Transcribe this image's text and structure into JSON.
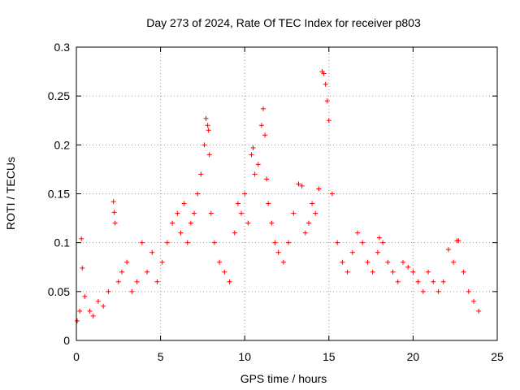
{
  "chart_data": {
    "type": "scatter",
    "title": "Day 273 of 2024, Rate Of TEC Index for receiver p803",
    "xlabel": "GPS time / hours",
    "ylabel": "ROTI / TECUs",
    "xlim": [
      0,
      25
    ],
    "ylim": [
      0,
      0.3
    ],
    "xticks": [
      0,
      5,
      10,
      15,
      20,
      25
    ],
    "yticks": [
      0,
      0.05,
      0.1,
      0.15,
      0.2,
      0.25,
      0.3
    ],
    "xtick_labels": [
      "0",
      "5",
      "10",
      "15",
      "20",
      "25"
    ],
    "ytick_labels": [
      "0",
      "0.05",
      "0.1",
      "0.15",
      "0.2",
      "0.25",
      "0.3"
    ],
    "grid": true,
    "marker": "plus",
    "color": "#ff0000",
    "series": [
      {
        "x": [
          0.05,
          0.2,
          0.3,
          0.35,
          0.5,
          0.8,
          1.0,
          1.3,
          1.6,
          1.9,
          2.2,
          2.25,
          2.3,
          2.5,
          2.7,
          3.0,
          3.3,
          3.6,
          3.9,
          4.2,
          4.5,
          4.8,
          5.1,
          5.4,
          5.7,
          6.0,
          6.2,
          6.4,
          6.6,
          6.8,
          7.0,
          7.2,
          7.4,
          7.6,
          7.7,
          7.8,
          7.85,
          7.9,
          8.0,
          8.2,
          8.5,
          8.8,
          9.1,
          9.4,
          9.6,
          9.8,
          10.0,
          10.2,
          10.4,
          10.5,
          10.6,
          10.8,
          11.0,
          11.1,
          11.2,
          11.3,
          11.4,
          11.6,
          11.8,
          12.0,
          12.3,
          12.6,
          12.9,
          13.2,
          13.4,
          13.6,
          13.8,
          14.0,
          14.2,
          14.4,
          14.6,
          14.7,
          14.8,
          14.9,
          15.0,
          15.2,
          15.5,
          15.8,
          16.1,
          16.4,
          16.7,
          17.0,
          17.3,
          17.6,
          17.9,
          18.0,
          18.2,
          18.5,
          18.8,
          19.1,
          19.4,
          19.7,
          20.0,
          20.3,
          20.6,
          20.9,
          21.2,
          21.5,
          21.8,
          22.1,
          22.4,
          22.6,
          22.7,
          23.0,
          23.3,
          23.6,
          23.9
        ],
        "y": [
          0.02,
          0.03,
          0.104,
          0.074,
          0.045,
          0.03,
          0.025,
          0.04,
          0.035,
          0.05,
          0.142,
          0.131,
          0.12,
          0.06,
          0.07,
          0.08,
          0.05,
          0.06,
          0.1,
          0.07,
          0.09,
          0.06,
          0.08,
          0.1,
          0.12,
          0.13,
          0.11,
          0.14,
          0.1,
          0.12,
          0.13,
          0.15,
          0.17,
          0.2,
          0.227,
          0.22,
          0.215,
          0.19,
          0.13,
          0.1,
          0.08,
          0.07,
          0.06,
          0.11,
          0.14,
          0.13,
          0.15,
          0.12,
          0.19,
          0.197,
          0.17,
          0.18,
          0.22,
          0.237,
          0.21,
          0.165,
          0.14,
          0.12,
          0.1,
          0.09,
          0.08,
          0.1,
          0.13,
          0.16,
          0.158,
          0.11,
          0.12,
          0.14,
          0.13,
          0.155,
          0.275,
          0.273,
          0.262,
          0.245,
          0.225,
          0.15,
          0.1,
          0.08,
          0.07,
          0.09,
          0.11,
          0.1,
          0.08,
          0.07,
          0.09,
          0.105,
          0.1,
          0.08,
          0.07,
          0.06,
          0.08,
          0.075,
          0.07,
          0.06,
          0.05,
          0.07,
          0.06,
          0.05,
          0.06,
          0.093,
          0.08,
          0.102,
          0.102,
          0.07,
          0.05,
          0.04,
          0.03
        ]
      }
    ]
  }
}
